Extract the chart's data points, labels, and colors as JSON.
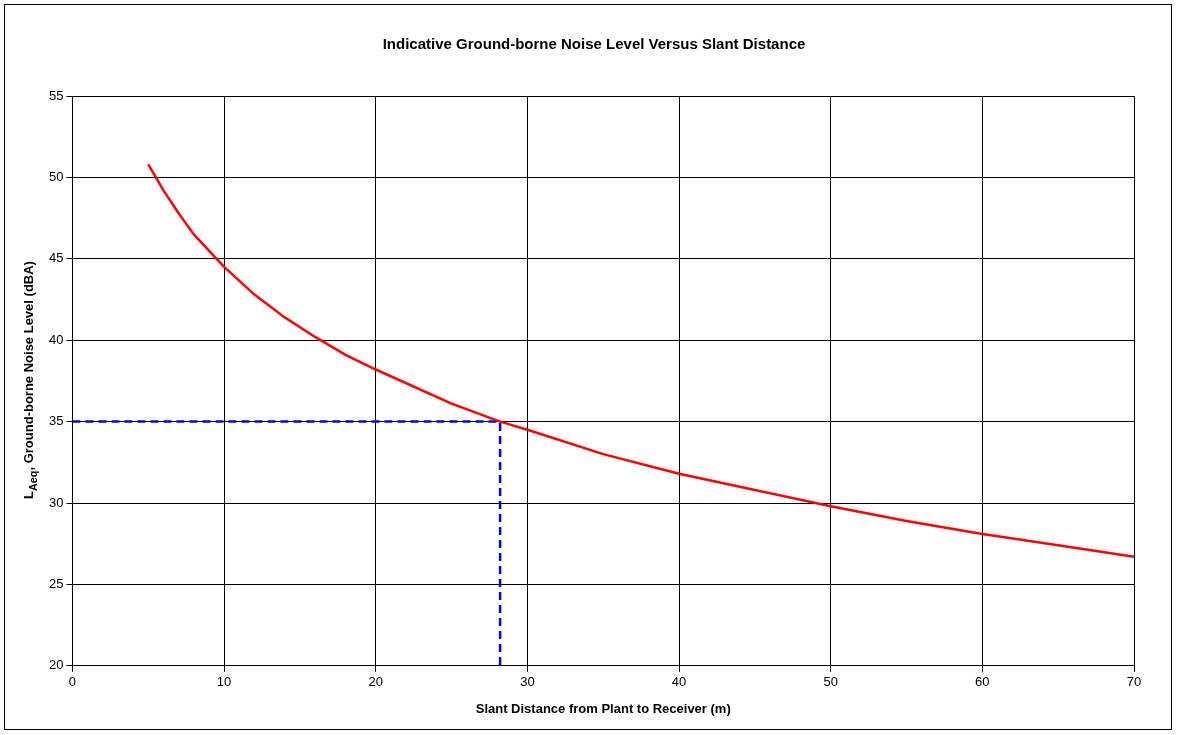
{
  "chart_data": {
    "type": "line",
    "title": "Indicative Ground-borne Noise Level Versus Slant Distance",
    "xlabel": "Slant Distance from Plant to Receiver (m)",
    "ylabel": "L$_{Aeq}$, Ground-borne Noise Level (dBA)",
    "xlim": [
      0,
      70
    ],
    "xticks": [
      0,
      10,
      20,
      30,
      40,
      50,
      60,
      70
    ],
    "ylim": [
      20,
      55
    ],
    "yticks": [
      20,
      25,
      30,
      35,
      40,
      45,
      50,
      55
    ],
    "grid": true,
    "legend": false,
    "marker": "none",
    "series": [
      {
        "color": "#ff0000",
        "line_style": "solid",
        "x": [
          5,
          6,
          7,
          8,
          9,
          10,
          12,
          14,
          16,
          18,
          20,
          25,
          28.2,
          30,
          35,
          40,
          45,
          50,
          55,
          60,
          65,
          70
        ],
        "values": [
          50.8,
          49.2,
          47.8,
          46.5,
          45.5,
          44.5,
          42.8,
          41.4,
          40.2,
          39.1,
          38.2,
          36.1,
          35.0,
          34.5,
          33.0,
          31.8,
          30.8,
          29.8,
          28.9,
          28.1,
          27.4,
          26.7
        ]
      },
      {
        "color": "#0000ff",
        "line_style": "dashed",
        "x": [
          0,
          28.2,
          28.2
        ],
        "values": [
          35,
          35,
          20
        ]
      }
    ]
  }
}
